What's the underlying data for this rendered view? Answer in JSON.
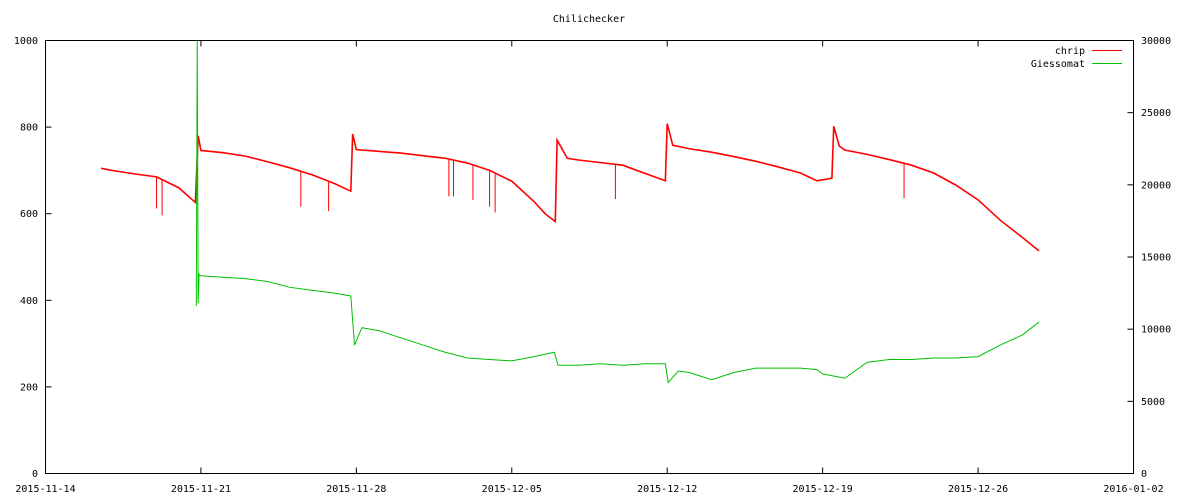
{
  "chart_data": {
    "type": "line",
    "title": "Chilichecker",
    "x_ticks": [
      "2015-11-14",
      "2015-11-21",
      "2015-11-28",
      "2015-12-05",
      "2015-12-12",
      "2015-12-19",
      "2015-12-26",
      "2016-01-02"
    ],
    "xlim": [
      "2015-11-14",
      "2016-01-02"
    ],
    "y_left_ticks": [
      "0",
      "200",
      "400",
      "600",
      "800",
      "1000"
    ],
    "y_right_ticks": [
      "0",
      "5000",
      "10000",
      "15000",
      "20000",
      "25000",
      "30000"
    ],
    "ylim_left": [
      0,
      1000
    ],
    "ylim_right": [
      0,
      30000
    ],
    "grid": false,
    "legend_position": "top-right",
    "series": [
      {
        "name": "chrip",
        "axis": "left",
        "color": "#ff0000",
        "points": [
          [
            "2015-11-16T12:00",
            705
          ],
          [
            "2015-11-17T00:00",
            700
          ],
          [
            "2015-11-18T00:00",
            692
          ],
          [
            "2015-11-19T00:00",
            685
          ],
          [
            "2015-11-20T00:00",
            660
          ],
          [
            "2015-11-20T18:00",
            626
          ],
          [
            "2015-11-20T21:00",
            780
          ],
          [
            "2015-11-21T00:00",
            746
          ],
          [
            "2015-11-22T00:00",
            741
          ],
          [
            "2015-11-23T00:00",
            733
          ],
          [
            "2015-11-24T00:00",
            720
          ],
          [
            "2015-11-25T00:00",
            706
          ],
          [
            "2015-11-26T00:00",
            690
          ],
          [
            "2015-11-27T00:00",
            670
          ],
          [
            "2015-11-27T18:00",
            652
          ],
          [
            "2015-11-27T20:00",
            784
          ],
          [
            "2015-11-28T00:00",
            748
          ],
          [
            "2015-11-29T00:00",
            744
          ],
          [
            "2015-11-30T00:00",
            740
          ],
          [
            "2015-12-01T00:00",
            734
          ],
          [
            "2015-12-02T00:00",
            728
          ],
          [
            "2015-12-03T00:00",
            717
          ],
          [
            "2015-12-04T00:00",
            700
          ],
          [
            "2015-12-05T00:00",
            675
          ],
          [
            "2015-12-06T00:00",
            628
          ],
          [
            "2015-12-06T12:00",
            600
          ],
          [
            "2015-12-06T23:00",
            582
          ],
          [
            "2015-12-07T01:00",
            770
          ],
          [
            "2015-12-07T12:00",
            728
          ],
          [
            "2015-12-08T00:00",
            724
          ],
          [
            "2015-12-09T00:00",
            718
          ],
          [
            "2015-12-10T00:00",
            712
          ],
          [
            "2015-12-11T00:00",
            693
          ],
          [
            "2015-12-11T22:00",
            676
          ],
          [
            "2015-12-12T00:00",
            808
          ],
          [
            "2015-12-12T06:00",
            758
          ],
          [
            "2015-12-13T00:00",
            750
          ],
          [
            "2015-12-14T00:00",
            742
          ],
          [
            "2015-12-15T00:00",
            732
          ],
          [
            "2015-12-16T00:00",
            721
          ],
          [
            "2015-12-17T00:00",
            708
          ],
          [
            "2015-12-18T00:00",
            694
          ],
          [
            "2015-12-18T18:00",
            676
          ],
          [
            "2015-12-19T10:00",
            682
          ],
          [
            "2015-12-19T12:00",
            802
          ],
          [
            "2015-12-19T18:00",
            756
          ],
          [
            "2015-12-20T00:00",
            747
          ],
          [
            "2015-12-21T00:00",
            737
          ],
          [
            "2015-12-22T00:00",
            725
          ],
          [
            "2015-12-23T00:00",
            712
          ],
          [
            "2015-12-24T00:00",
            694
          ],
          [
            "2015-12-25T00:00",
            666
          ],
          [
            "2015-12-26T00:00",
            632
          ],
          [
            "2015-12-27T00:00",
            585
          ],
          [
            "2015-12-28T00:00",
            545
          ],
          [
            "2015-12-28T18:00",
            514
          ]
        ],
        "dips": [
          [
            "2015-11-19T00:00",
            612
          ],
          [
            "2015-11-19T06:00",
            596
          ],
          [
            "2015-11-25T12:00",
            616
          ],
          [
            "2015-11-26T18:00",
            606
          ],
          [
            "2015-12-02T04:00",
            640
          ],
          [
            "2015-12-02T09:00",
            640
          ],
          [
            "2015-12-03T06:00",
            632
          ],
          [
            "2015-12-04T00:00",
            616
          ],
          [
            "2015-12-04T06:00",
            603
          ],
          [
            "2015-12-09T16:00",
            634
          ],
          [
            "2015-12-22T16:00",
            636
          ]
        ]
      },
      {
        "name": "Giessomat",
        "axis": "right",
        "color": "#00c000",
        "points": [
          [
            "2015-11-20T19:00",
            11600
          ],
          [
            "2015-11-20T20:00",
            30000
          ],
          [
            "2015-11-20T21:00",
            11800
          ],
          [
            "2015-11-20T22:00",
            13800
          ],
          [
            "2015-11-21T00:00",
            13700
          ],
          [
            "2015-11-22T00:00",
            13600
          ],
          [
            "2015-11-23T00:00",
            13500
          ],
          [
            "2015-11-24T00:00",
            13300
          ],
          [
            "2015-11-25T00:00",
            12900
          ],
          [
            "2015-11-26T00:00",
            12700
          ],
          [
            "2015-11-27T00:00",
            12500
          ],
          [
            "2015-11-27T18:00",
            12300
          ],
          [
            "2015-11-27T22:00",
            8900
          ],
          [
            "2015-11-28T06:00",
            10100
          ],
          [
            "2015-11-29T00:00",
            9900
          ],
          [
            "2015-11-30T00:00",
            9400
          ],
          [
            "2015-12-01T00:00",
            8900
          ],
          [
            "2015-12-02T00:00",
            8400
          ],
          [
            "2015-12-03T00:00",
            8000
          ],
          [
            "2015-12-04T00:00",
            7900
          ],
          [
            "2015-12-05T00:00",
            7800
          ],
          [
            "2015-12-06T00:00",
            8100
          ],
          [
            "2015-12-06T22:00",
            8400
          ],
          [
            "2015-12-07T02:00",
            7500
          ],
          [
            "2015-12-08T00:00",
            7500
          ],
          [
            "2015-12-09T00:00",
            7600
          ],
          [
            "2015-12-10T00:00",
            7500
          ],
          [
            "2015-12-11T00:00",
            7600
          ],
          [
            "2015-12-11T22:00",
            7600
          ],
          [
            "2015-12-12T01:00",
            6300
          ],
          [
            "2015-12-12T12:00",
            7100
          ],
          [
            "2015-12-13T00:00",
            7000
          ],
          [
            "2015-12-14T00:00",
            6500
          ],
          [
            "2015-12-15T00:00",
            7000
          ],
          [
            "2015-12-16T00:00",
            7300
          ],
          [
            "2015-12-17T00:00",
            7300
          ],
          [
            "2015-12-18T00:00",
            7300
          ],
          [
            "2015-12-18T18:00",
            7200
          ],
          [
            "2015-12-19T00:00",
            6900
          ],
          [
            "2015-12-20T00:00",
            6600
          ],
          [
            "2015-12-21T00:00",
            7700
          ],
          [
            "2015-12-22T00:00",
            7900
          ],
          [
            "2015-12-23T00:00",
            7900
          ],
          [
            "2015-12-24T00:00",
            8000
          ],
          [
            "2015-12-25T00:00",
            8000
          ],
          [
            "2015-12-26T00:00",
            8100
          ],
          [
            "2015-12-27T00:00",
            8900
          ],
          [
            "2015-12-28T00:00",
            9600
          ],
          [
            "2015-12-28T18:00",
            10500
          ]
        ]
      }
    ]
  }
}
